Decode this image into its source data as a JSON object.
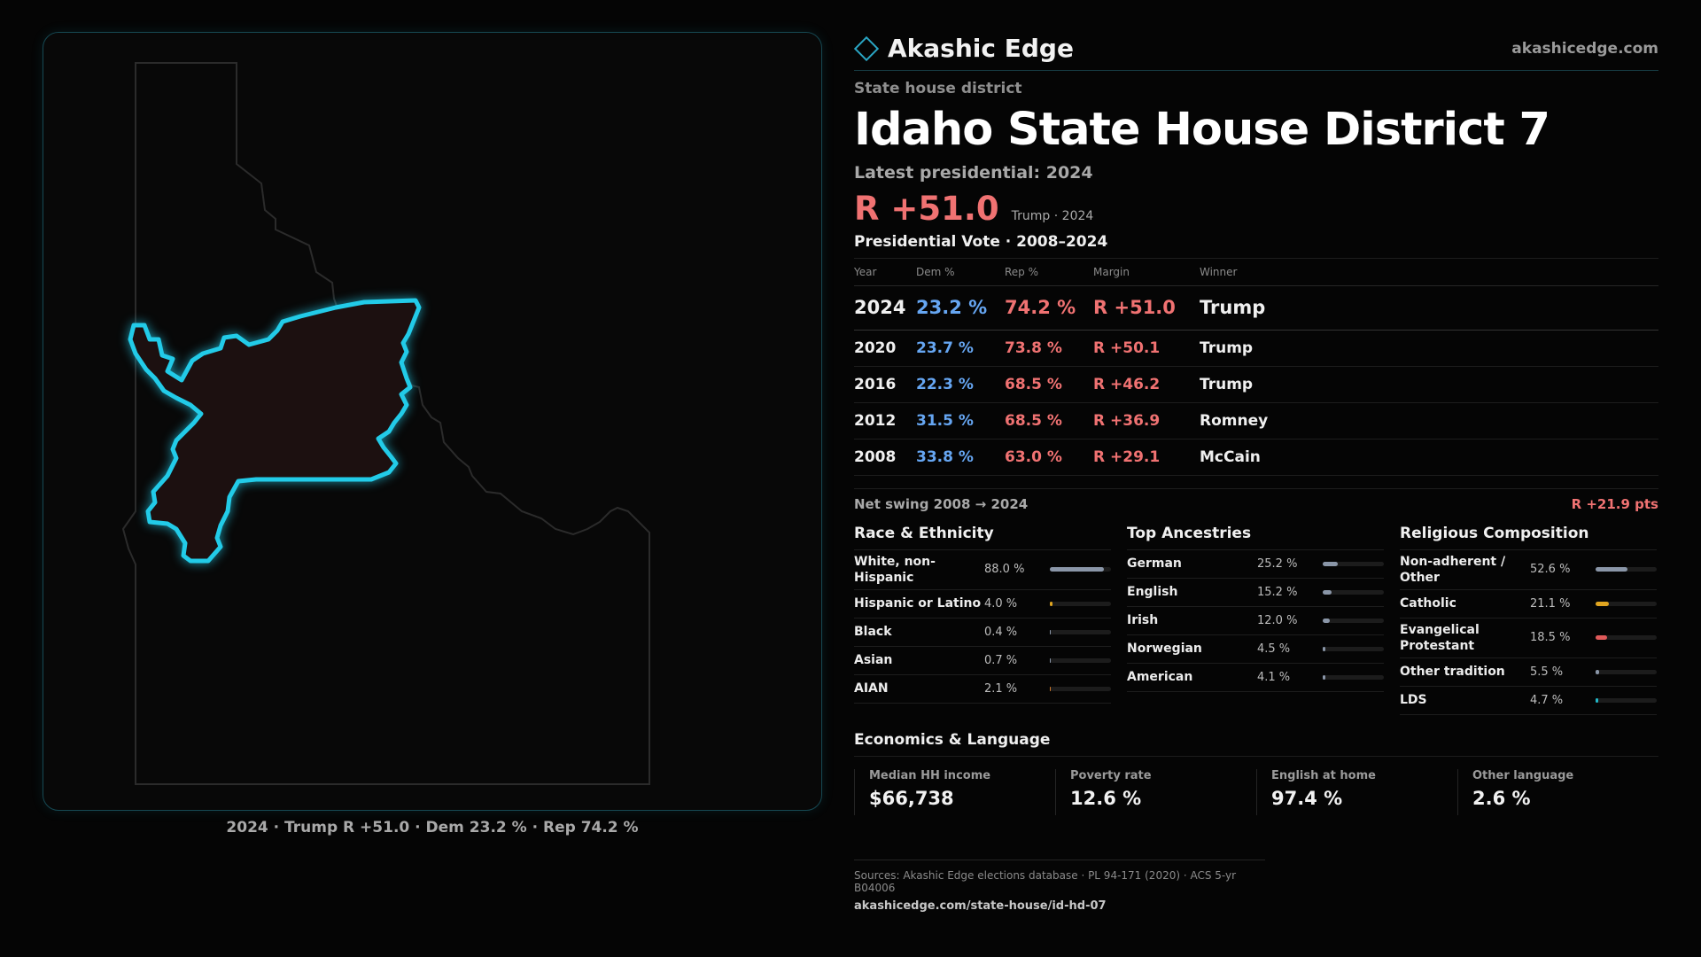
{
  "brand": {
    "name": "Akashic Edge",
    "site": "akashicedge.com"
  },
  "district": {
    "kind": "State house district",
    "title": "Idaho State House District 7",
    "latest_label": "Latest presidential: 2024",
    "margin": "R +51.0",
    "margin_sub": "Trump · 2024"
  },
  "map": {
    "caption": "2024 · Trump R +51.0 · Dem 23.2 % · Rep 74.2 %",
    "district_fill": "#1c1010",
    "district_stroke": "#22cbe8"
  },
  "presidential": {
    "title": "Presidential Vote · 2008–2024",
    "headers": [
      "Year",
      "Dem %",
      "Rep %",
      "Margin",
      "Winner"
    ],
    "rows": [
      {
        "year": "2024",
        "dem": "23.2 %",
        "rep": "74.2 %",
        "margin": "R +51.0",
        "winner": "Trump"
      },
      {
        "year": "2020",
        "dem": "23.7 %",
        "rep": "73.8 %",
        "margin": "R +50.1",
        "winner": "Trump"
      },
      {
        "year": "2016",
        "dem": "22.3 %",
        "rep": "68.5 %",
        "margin": "R +46.2",
        "winner": "Trump"
      },
      {
        "year": "2012",
        "dem": "31.5 %",
        "rep": "68.5 %",
        "margin": "R +36.9",
        "winner": "Romney"
      },
      {
        "year": "2008",
        "dem": "33.8 %",
        "rep": "63.0 %",
        "margin": "R +29.1",
        "winner": "McCain"
      }
    ],
    "swing_label": "Net swing 2008 → 2024",
    "swing_value": "R +21.9 pts"
  },
  "race": {
    "title": "Race & Ethnicity",
    "rows": [
      {
        "label": "White, non-Hispanic",
        "value": "88.0 %",
        "pct": 88.0,
        "color": "#8a96a8"
      },
      {
        "label": "Hispanic or Latino",
        "value": "4.0 %",
        "pct": 4.0,
        "color": "#e0a520"
      },
      {
        "label": "Black",
        "value": "0.4 %",
        "pct": 0.4,
        "color": "#8a96a8"
      },
      {
        "label": "Asian",
        "value": "0.7 %",
        "pct": 0.7,
        "color": "#8a96a8"
      },
      {
        "label": "AIAN",
        "value": "2.1 %",
        "pct": 2.1,
        "color": "#d0782a"
      }
    ]
  },
  "ancestry": {
    "title": "Top Ancestries",
    "rows": [
      {
        "label": "German",
        "value": "25.2 %",
        "pct": 25.2,
        "color": "#8a96a8"
      },
      {
        "label": "English",
        "value": "15.2 %",
        "pct": 15.2,
        "color": "#8a96a8"
      },
      {
        "label": "Irish",
        "value": "12.0 %",
        "pct": 12.0,
        "color": "#8a96a8"
      },
      {
        "label": "Norwegian",
        "value": "4.5 %",
        "pct": 4.5,
        "color": "#8a96a8"
      },
      {
        "label": "American",
        "value": "4.1 %",
        "pct": 4.1,
        "color": "#8a96a8"
      }
    ]
  },
  "religion": {
    "title": "Religious Composition",
    "rows": [
      {
        "label": "Non-adherent / Other",
        "value": "52.6 %",
        "pct": 52.6,
        "color": "#8a96a8"
      },
      {
        "label": "Catholic",
        "value": "21.1 %",
        "pct": 21.1,
        "color": "#e0a520"
      },
      {
        "label": "Evangelical Protestant",
        "value": "18.5 %",
        "pct": 18.5,
        "color": "#e05a5a"
      },
      {
        "label": "Other tradition",
        "value": "5.5 %",
        "pct": 5.5,
        "color": "#8a96a8"
      },
      {
        "label": "LDS",
        "value": "4.7 %",
        "pct": 4.7,
        "color": "#22b8c8"
      }
    ]
  },
  "economics": {
    "title": "Economics & Language",
    "cards": [
      {
        "label": "Median HH income",
        "value": "$66,738"
      },
      {
        "label": "Poverty rate",
        "value": "12.6 %"
      },
      {
        "label": "English at home",
        "value": "97.4 %"
      },
      {
        "label": "Other language",
        "value": "2.6 %"
      }
    ]
  },
  "sources": {
    "line": "Sources: Akashic Edge elections database · PL 94-171 (2020) · ACS 5-yr B04006",
    "url": "akashicedge.com/state-house/id-hd-07"
  },
  "colors": {
    "dem": "#66a6f2",
    "rep": "#f07272",
    "accent": "#22cbe8"
  }
}
